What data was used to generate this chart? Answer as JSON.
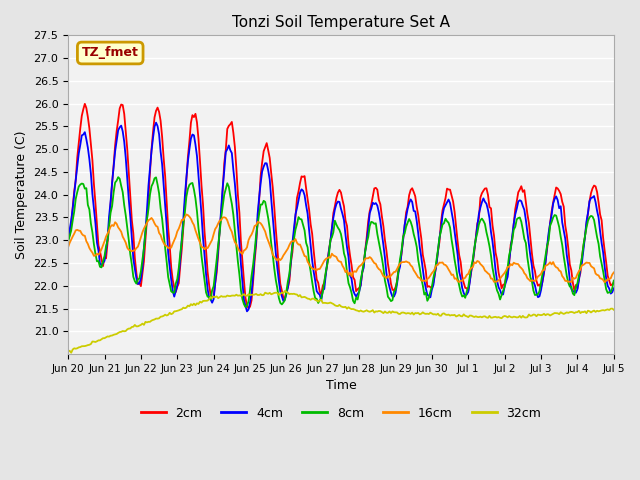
{
  "title": "Tonzi Soil Temperature Set A",
  "xlabel": "Time",
  "ylabel": "Soil Temperature (C)",
  "annotation": "TZ_fmet",
  "annotation_bg": "#ffffcc",
  "annotation_border": "#cc9900",
  "annotation_text_color": "#990000",
  "ylim": [
    20.5,
    27.5
  ],
  "yticks": [
    21.0,
    21.5,
    22.0,
    22.5,
    23.0,
    23.5,
    24.0,
    24.5,
    25.0,
    25.5,
    26.0,
    26.5,
    27.0,
    27.5
  ],
  "xtick_labels": [
    "Jun 20",
    "Jun 21",
    "Jun 22",
    "Jun 23",
    "Jun 24",
    "Jun 25",
    "Jun 26",
    "Jun 27",
    "Jun 28",
    "Jun 29",
    "Jun 30",
    "Jul 1",
    "Jul 2",
    "Jul 3",
    "Jul 4",
    "Jul 5"
  ],
  "bg_color": "#e5e5e5",
  "plot_bg": "#f2f2f2",
  "grid_color": "#ffffff",
  "series_colors": [
    "#ff0000",
    "#0000ff",
    "#00bb00",
    "#ff8800",
    "#cccc00"
  ],
  "series_labels": [
    "2cm",
    "4cm",
    "8cm",
    "16cm",
    "32cm"
  ],
  "series_linewidth": 1.3
}
